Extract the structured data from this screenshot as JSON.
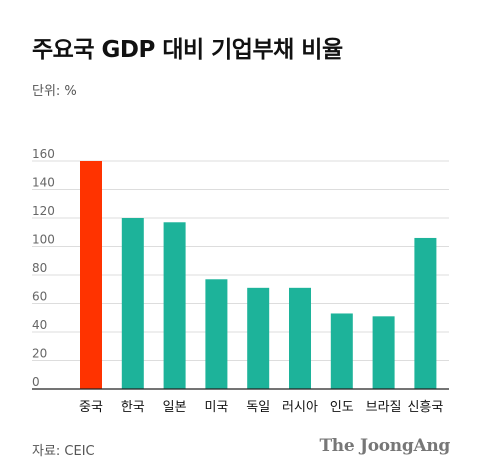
{
  "header": {
    "title": "주요국 GDP 대비 기업부채 비율",
    "unit": "단위: %"
  },
  "footer": {
    "source": "자료: CEIC",
    "logo_text": "The JoongAng"
  },
  "colors": {
    "highlight": "#ff3300",
    "bar": "#1db39a",
    "grid": "#dddddd",
    "axis": "#222222",
    "tick_text": "#666666"
  },
  "chart_data": {
    "type": "bar",
    "title": "주요국 GDP 대비 기업부채 비율",
    "xlabel": "",
    "ylabel": "",
    "categories": [
      "중국",
      "한국",
      "일본",
      "미국",
      "독일",
      "러시아",
      "인도",
      "브라질",
      "신흥국"
    ],
    "values": [
      160,
      120,
      117,
      77,
      71,
      71,
      53,
      51,
      106
    ],
    "highlight_index": 0,
    "ylim": [
      0,
      160
    ],
    "yticks": [
      0,
      20,
      40,
      60,
      80,
      100,
      120,
      140,
      160
    ],
    "grid": true,
    "legend": "none"
  }
}
